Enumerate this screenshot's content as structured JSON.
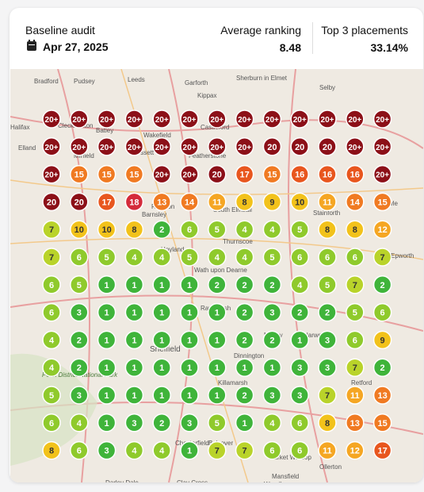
{
  "header": {
    "title": "Baseline audit",
    "date": "Apr 27, 2025",
    "stats": [
      {
        "label": "Average ranking",
        "value": "8.48"
      },
      {
        "label": "Top 3 placements",
        "value": "33.14%"
      }
    ]
  },
  "map": {
    "labels": [
      "Bradford",
      "Pudsey",
      "Leeds",
      "Garforth",
      "Sherburn in Elmet",
      "Kippax",
      "Selby",
      "Halifax",
      "Cleckheaton",
      "Batley",
      "Castleford",
      "Wakefield",
      "Featherstone",
      "Ossett",
      "Mirfield",
      "Elland",
      "Barnsley",
      "Royston",
      "South Elmsall",
      "Stainforth",
      "Crowle",
      "Thurnscoe",
      "Hoyland",
      "Wath upon Dearne",
      "Rawmarsh",
      "Epworth",
      "Sheffield",
      "Maltby",
      "Harworth",
      "Dinnington",
      "Killamarsh",
      "Retford",
      "Peak District National Park",
      "Chesterfield",
      "Bolsover",
      "Market Warsop",
      "Ollerton",
      "Darley Dale",
      "Clay Cross",
      "Mansfield",
      "Woodhouse"
    ],
    "grid": [
      [
        "20+",
        "20+",
        "20+",
        "20+",
        "20+",
        "20+",
        "20+",
        "20+",
        "20+",
        "20+",
        "20+",
        "20+",
        "20+"
      ],
      [
        "20+",
        "20+",
        "20+",
        "20+",
        "20+",
        "20+",
        "20+",
        "20+",
        20,
        20,
        20,
        "20+",
        "20+"
      ],
      [
        "20+",
        15,
        15,
        15,
        "20+",
        "20+",
        20,
        17,
        15,
        16,
        16,
        16,
        "20+"
      ],
      [
        20,
        20,
        17,
        18,
        13,
        14,
        11,
        8,
        9,
        10,
        11,
        14,
        15
      ],
      [
        7,
        10,
        10,
        8,
        2,
        6,
        5,
        4,
        4,
        5,
        8,
        8,
        12
      ],
      [
        7,
        6,
        5,
        4,
        4,
        5,
        4,
        4,
        5,
        6,
        6,
        6,
        7
      ],
      [
        6,
        5,
        1,
        1,
        1,
        1,
        2,
        2,
        2,
        4,
        5,
        7,
        2
      ],
      [
        6,
        3,
        1,
        1,
        1,
        1,
        1,
        2,
        3,
        2,
        2,
        5,
        6
      ],
      [
        4,
        2,
        1,
        1,
        1,
        1,
        1,
        2,
        2,
        1,
        3,
        6,
        9
      ],
      [
        4,
        2,
        1,
        1,
        1,
        1,
        1,
        1,
        1,
        3,
        3,
        7,
        2
      ],
      [
        5,
        3,
        1,
        1,
        1,
        1,
        1,
        2,
        3,
        3,
        7,
        11,
        13
      ],
      [
        6,
        4,
        1,
        3,
        2,
        3,
        5,
        1,
        4,
        6,
        8,
        13,
        15
      ],
      [
        8,
        6,
        3,
        4,
        4,
        1,
        7,
        7,
        6,
        6,
        11,
        12,
        17
      ]
    ]
  }
}
